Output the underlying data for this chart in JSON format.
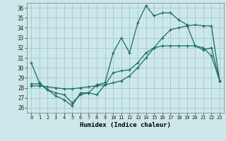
{
  "xlabel": "Humidex (Indice chaleur)",
  "background_color": "#cce8ea",
  "grid_color": "#aacccc",
  "line_color": "#1a6b6b",
  "x_ticks": [
    0,
    1,
    2,
    3,
    4,
    5,
    6,
    7,
    8,
    9,
    10,
    11,
    12,
    13,
    14,
    15,
    16,
    17,
    18,
    19,
    20,
    21,
    22,
    23
  ],
  "y_ticks": [
    26,
    27,
    28,
    29,
    30,
    31,
    32,
    33,
    34,
    35,
    36
  ],
  "ylim": [
    25.5,
    36.5
  ],
  "xlim": [
    -0.5,
    23.5
  ],
  "line1_y": [
    30.5,
    28.5,
    27.8,
    27.2,
    26.8,
    26.2,
    27.5,
    27.5,
    28.3,
    28.5,
    31.5,
    33.0,
    31.5,
    34.5,
    36.2,
    35.2,
    35.5,
    35.5,
    34.8,
    34.3,
    32.2,
    32.0,
    31.2,
    28.7
  ],
  "line2_y": [
    28.2,
    28.2,
    28.1,
    28.0,
    27.9,
    27.9,
    28.0,
    28.1,
    28.2,
    28.3,
    28.5,
    28.7,
    29.2,
    30.0,
    31.0,
    32.0,
    33.0,
    33.8,
    34.0,
    34.2,
    34.3,
    34.2,
    34.2,
    28.7
  ],
  "line3_y": [
    28.4,
    28.4,
    27.8,
    27.5,
    27.3,
    26.5,
    27.3,
    27.5,
    27.3,
    28.3,
    29.5,
    29.7,
    29.8,
    30.5,
    31.5,
    32.0,
    32.2,
    32.2,
    32.2,
    32.2,
    32.2,
    31.8,
    32.0,
    28.7
  ]
}
